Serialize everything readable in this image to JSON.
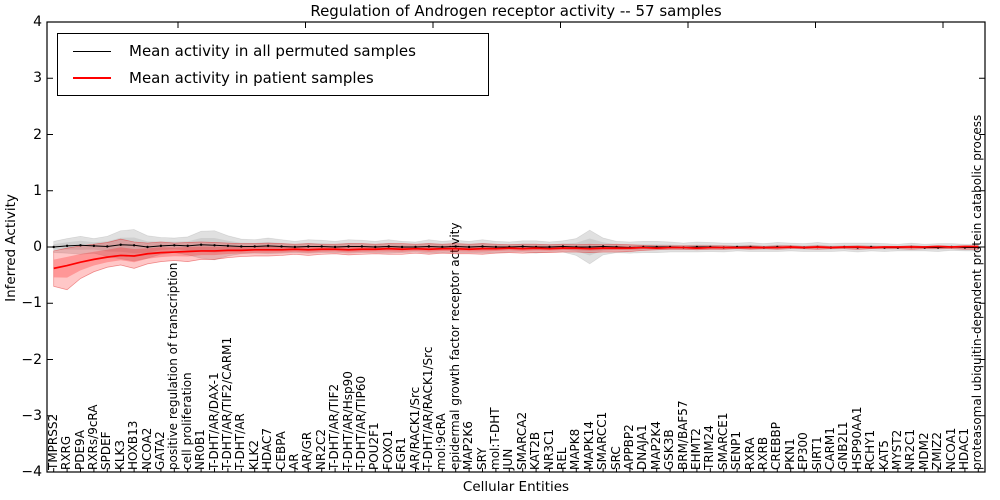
{
  "title": "Regulation of Androgen receptor activity -- 57 samples",
  "axes": {
    "xlabel": "Cellular Entities",
    "ylabel": "Inferred Activity",
    "y_tick_values": [
      4,
      3,
      2,
      1,
      0,
      -1,
      -2,
      -3,
      -4
    ],
    "y_tick_labels": [
      "4",
      "3",
      "2",
      "1",
      "0",
      "−1",
      "−2",
      "−3",
      "−4"
    ],
    "ylim": [
      -4,
      4
    ]
  },
  "legend": {
    "items": [
      {
        "label": "Mean activity in all permuted samples",
        "color": "#000000"
      },
      {
        "label": "Mean activity in patient samples",
        "color": "#ff0000"
      }
    ]
  },
  "chart_data": {
    "type": "line",
    "title": "Regulation of Androgen receptor activity -- 57 samples",
    "xlabel": "Cellular Entities",
    "ylabel": "Inferred Activity",
    "ylim": [
      -4,
      4
    ],
    "grid": false,
    "legend_position": "upper left",
    "categories": [
      "TMPRSS2",
      "RXRG",
      "PDE9A",
      "RXRs/9cRA",
      "SPDEF",
      "KLK3",
      "HOXB13",
      "NCOA2",
      "GATA2",
      "positive regulation of transcription",
      "cell proliferation",
      "NR0B1",
      "T-DHT/AR/DAX-1",
      "T-DHT/AR/TIF2/CARM1",
      "T-DHT/AR",
      "KLK2",
      "HDAC7",
      "CEBPA",
      "AR",
      "AR/GR",
      "NR2C2",
      "T-DHT/AR/TIF2",
      "T-DHT/AR/Hsp90",
      "T-DHT/AR/TIP60",
      "POU2F1",
      "FOXO1",
      "EGR1",
      "AR/RACK1/Src",
      "T-DHT/AR/RACK1/Src",
      "mol:9cRA",
      "epidermal growth factor receptor activity",
      "MAP2K6",
      "SRY",
      "mol:T-DHT",
      "JUN",
      "SMARCA2",
      "KAT2B",
      "NR3C1",
      "REL",
      "MAPK8",
      "MAPK14",
      "SMARCC1",
      "SRC",
      "APPBP2",
      "DNAJA1",
      "MAP2K4",
      "GSK3B",
      "BRM/BAF57",
      "EHMT2",
      "TRIM24",
      "SMARCE1",
      "SENP1",
      "RXRA",
      "RXRB",
      "CREBBP",
      "PKN1",
      "EP300",
      "SIRT1",
      "CARM1",
      "GNB2L1",
      "HSP90AA1",
      "RCHY1",
      "KAT5",
      "MYST2",
      "NR2C1",
      "MDM2",
      "ZMIZ2",
      "NCOA1",
      "HDAC1",
      "proteasomal ubiquitin-dependent protein catabolic process"
    ],
    "series": [
      {
        "name": "Mean activity in all permuted samples",
        "color": "#000000",
        "band_color": "rgba(0,0,0,0.12)",
        "values": [
          0.0,
          0.02,
          0.03,
          0.02,
          0.01,
          0.04,
          0.03,
          0.0,
          0.02,
          0.03,
          0.02,
          0.04,
          0.03,
          0.02,
          0.01,
          0.01,
          0.02,
          0.01,
          0.0,
          0.01,
          0.01,
          0.0,
          0.01,
          0.01,
          0.0,
          0.01,
          0.0,
          0.0,
          0.01,
          0.0,
          0.01,
          0.0,
          0.01,
          0.0,
          0.0,
          0.01,
          0.0,
          0.0,
          0.01,
          0.0,
          0.0,
          0.01,
          0.0,
          -0.01,
          0.0,
          0.0,
          0.0,
          -0.01,
          0.0,
          0.0,
          -0.01,
          0.0,
          0.0,
          -0.01,
          0.0,
          0.0,
          -0.01,
          0.0,
          -0.01,
          0.0,
          -0.01,
          0.0,
          -0.01,
          -0.01,
          0.0,
          -0.01,
          -0.01,
          0.0,
          -0.01,
          -0.01
        ],
        "band_halfwidth": [
          0.1,
          0.13,
          0.16,
          0.13,
          0.18,
          0.25,
          0.28,
          0.2,
          0.15,
          0.13,
          0.16,
          0.24,
          0.26,
          0.18,
          0.13,
          0.12,
          0.14,
          0.12,
          0.1,
          0.12,
          0.11,
          0.1,
          0.12,
          0.11,
          0.1,
          0.12,
          0.1,
          0.09,
          0.12,
          0.1,
          0.11,
          0.1,
          0.12,
          0.1,
          0.09,
          0.1,
          0.11,
          0.09,
          0.1,
          0.15,
          0.3,
          0.15,
          0.1,
          0.1,
          0.1,
          0.1,
          0.09,
          0.08,
          0.09,
          0.08,
          0.08,
          0.07,
          0.08,
          0.07,
          0.08,
          0.07,
          0.07,
          0.08,
          0.07,
          0.07,
          0.08,
          0.07,
          0.07,
          0.06,
          0.07,
          0.06,
          0.07,
          0.06,
          0.06,
          0.06
        ]
      },
      {
        "name": "Mean activity in patient samples",
        "color": "#ff0000",
        "band_color": "rgba(255,0,0,0.22)",
        "values": [
          -0.38,
          -0.33,
          -0.27,
          -0.22,
          -0.18,
          -0.15,
          -0.16,
          -0.12,
          -0.1,
          -0.09,
          -0.08,
          -0.07,
          -0.07,
          -0.06,
          -0.06,
          -0.05,
          -0.05,
          -0.05,
          -0.04,
          -0.05,
          -0.04,
          -0.04,
          -0.05,
          -0.04,
          -0.04,
          -0.03,
          -0.04,
          -0.03,
          -0.04,
          -0.03,
          -0.03,
          -0.04,
          -0.03,
          -0.03,
          -0.02,
          -0.03,
          -0.02,
          -0.03,
          -0.02,
          -0.02,
          -0.03,
          -0.02,
          -0.02,
          -0.02,
          -0.01,
          -0.02,
          -0.01,
          -0.01,
          -0.02,
          -0.01,
          -0.01,
          -0.01,
          -0.01,
          -0.01,
          -0.01,
          0.0,
          -0.01,
          0.0,
          -0.01,
          0.0,
          0.0,
          -0.01,
          0.0,
          0.0,
          0.0,
          0.0,
          0.01,
          0.0,
          0.01,
          0.01
        ],
        "band_upper": [
          -0.07,
          -0.02,
          0.02,
          0.05,
          0.08,
          0.14,
          0.09,
          0.07,
          0.09,
          0.07,
          0.08,
          0.09,
          0.08,
          0.07,
          0.06,
          0.06,
          0.07,
          0.06,
          0.05,
          0.06,
          0.05,
          0.05,
          0.06,
          0.06,
          0.05,
          0.06,
          0.06,
          0.05,
          0.06,
          0.05,
          0.06,
          0.05,
          0.06,
          0.05,
          0.04,
          0.05,
          0.05,
          0.04,
          0.05,
          0.04,
          0.05,
          0.04,
          0.05,
          0.04,
          0.03,
          0.02,
          0.02,
          0.02,
          0.02,
          0.02,
          0.02,
          0.01,
          0.02,
          0.01,
          0.02,
          0.02,
          0.01,
          0.02,
          0.01,
          0.01,
          0.02,
          0.01,
          0.01,
          0.01,
          0.02,
          0.01,
          0.02,
          0.01,
          0.02,
          0.02
        ],
        "band_lower": [
          -0.7,
          -0.76,
          -0.56,
          -0.44,
          -0.36,
          -0.32,
          -0.38,
          -0.3,
          -0.26,
          -0.24,
          -0.26,
          -0.22,
          -0.22,
          -0.19,
          -0.17,
          -0.16,
          -0.16,
          -0.15,
          -0.13,
          -0.15,
          -0.13,
          -0.12,
          -0.14,
          -0.13,
          -0.12,
          -0.13,
          -0.13,
          -0.11,
          -0.13,
          -0.11,
          -0.12,
          -0.12,
          -0.13,
          -0.11,
          -0.1,
          -0.11,
          -0.1,
          -0.1,
          -0.09,
          -0.09,
          -0.1,
          -0.09,
          -0.09,
          -0.08,
          -0.06,
          -0.05,
          -0.04,
          -0.04,
          -0.05,
          -0.04,
          -0.04,
          -0.03,
          -0.04,
          -0.03,
          -0.04,
          -0.03,
          -0.03,
          -0.04,
          -0.03,
          -0.03,
          -0.04,
          -0.03,
          -0.03,
          -0.03,
          -0.04,
          -0.03,
          -0.03,
          -0.03,
          -0.04,
          -0.04
        ]
      }
    ]
  }
}
